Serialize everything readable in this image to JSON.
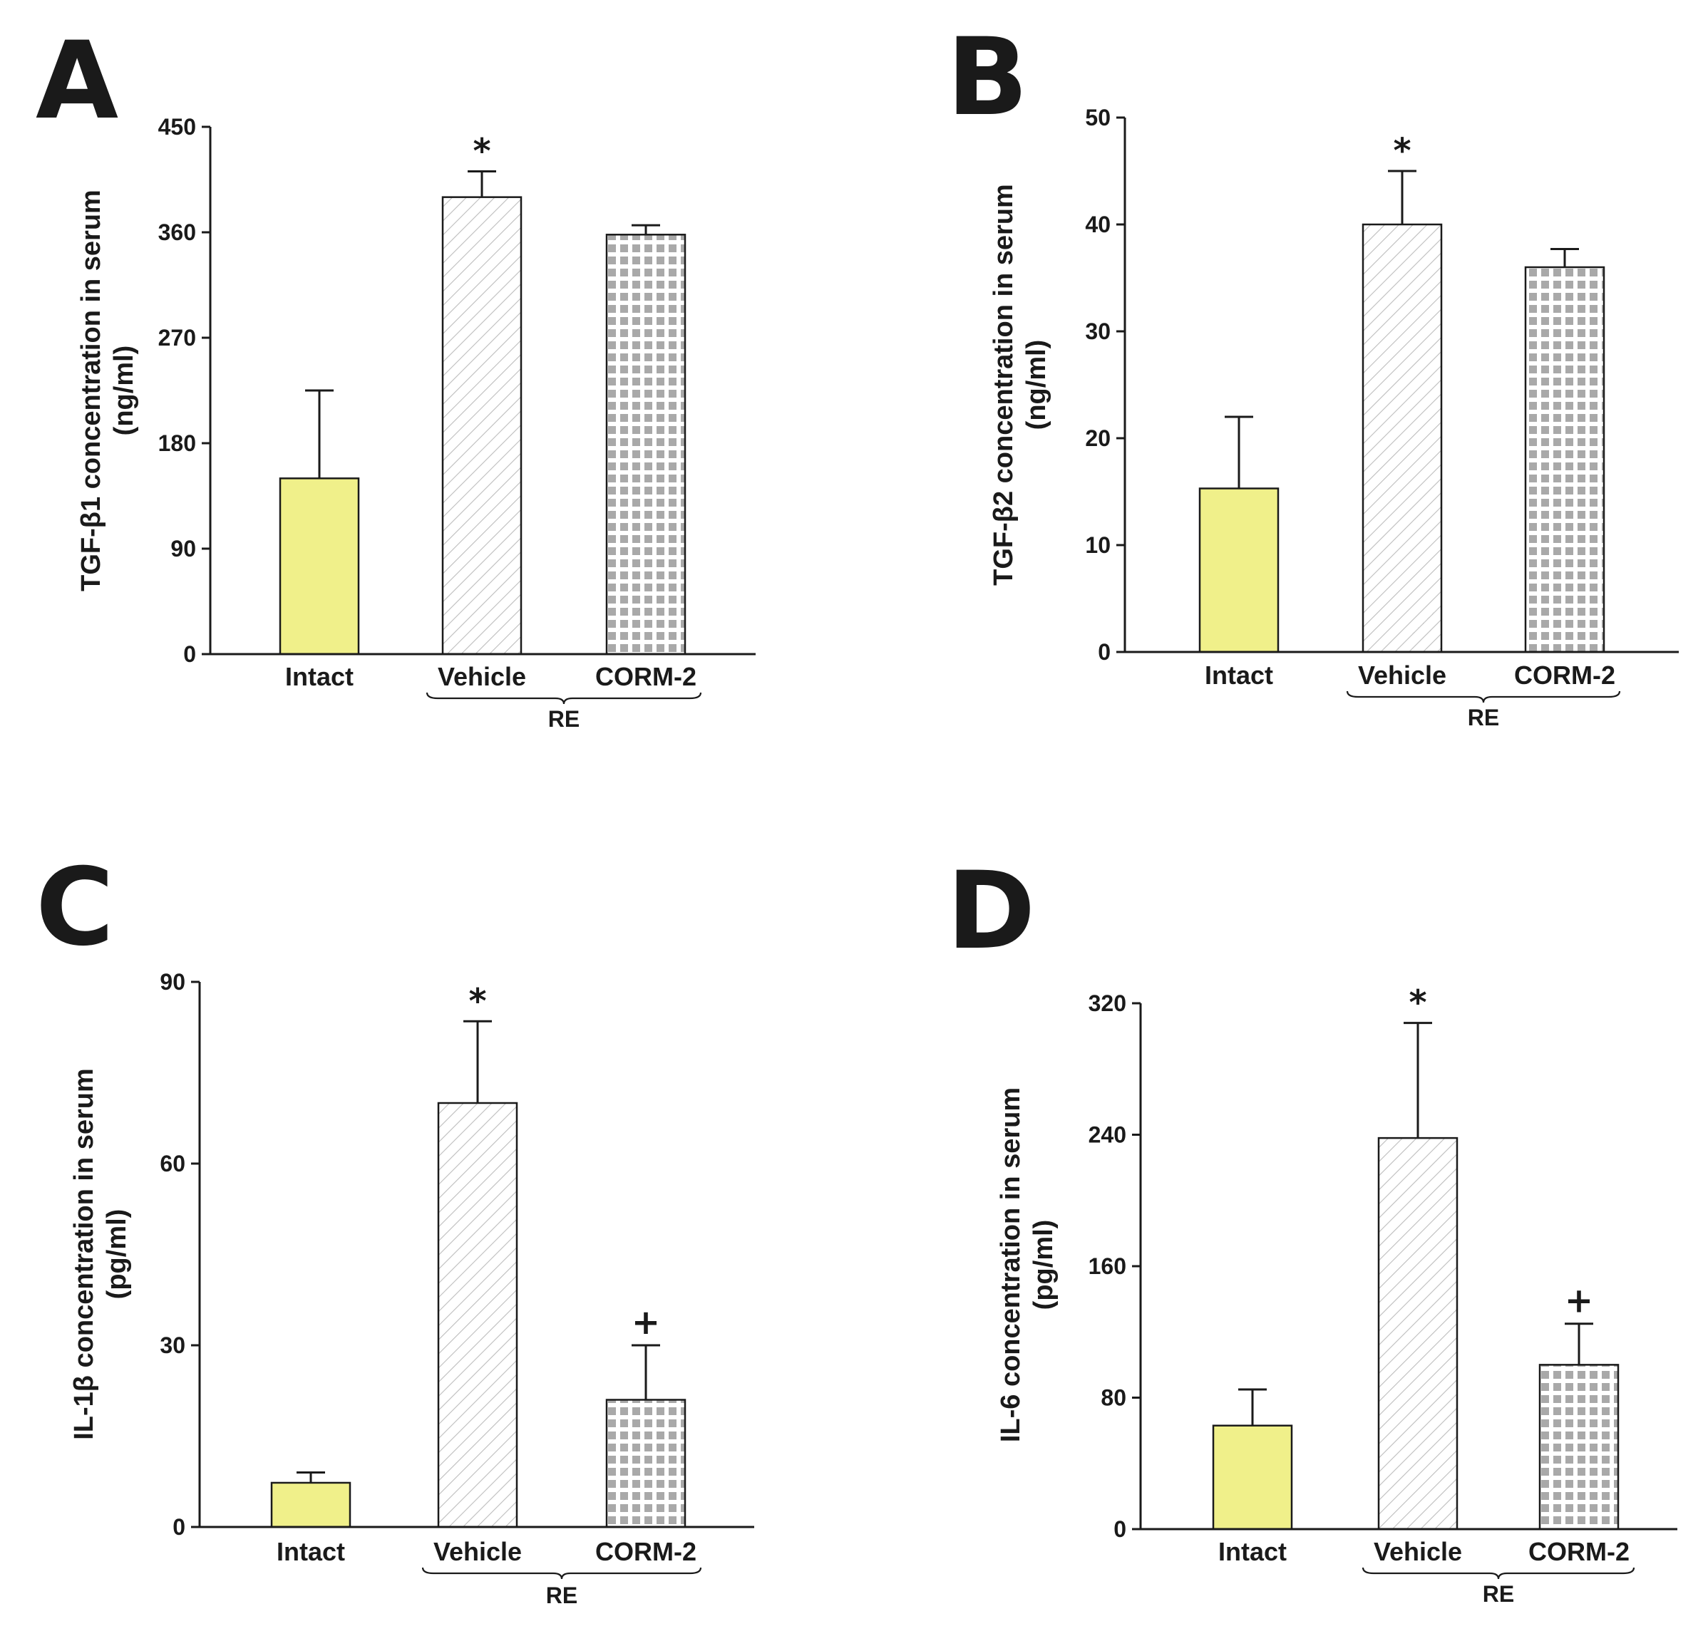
{
  "chart_data": [
    {
      "panel": "A",
      "type": "bar",
      "ylabel": "TGF-β1 concentration in serum",
      "yunit": "(ng/ml)",
      "ylim": [
        0,
        450
      ],
      "yticks": [
        "0",
        "90",
        "180",
        "270",
        "360",
        "450"
      ],
      "categories": [
        "Intact",
        "Vehicle",
        "CORM-2"
      ],
      "group_label": "RE",
      "values": [
        150,
        390,
        358
      ],
      "errors": [
        75,
        22,
        8
      ],
      "annotations": [
        "",
        "*",
        ""
      ]
    },
    {
      "panel": "B",
      "type": "bar",
      "ylabel": "TGF-β2 concentration in serum",
      "yunit": "(ng/ml)",
      "ylim": [
        0,
        50
      ],
      "yticks": [
        "0",
        "10",
        "20",
        "30",
        "40",
        "50"
      ],
      "categories": [
        "Intact",
        "Vehicle",
        "CORM-2"
      ],
      "group_label": "RE",
      "values": [
        15.3,
        40,
        36
      ],
      "errors": [
        6.7,
        5,
        1.7
      ],
      "annotations": [
        "",
        "*",
        ""
      ]
    },
    {
      "panel": "C",
      "type": "bar",
      "ylabel": "IL-1β concentration in serum",
      "yunit": "(pg/ml)",
      "ylim": [
        0,
        90
      ],
      "yticks": [
        "0",
        "30",
        "60",
        "90"
      ],
      "categories": [
        "Intact",
        "Vehicle",
        "CORM-2"
      ],
      "group_label": "RE",
      "values": [
        7.3,
        70,
        21
      ],
      "errors": [
        1.7,
        13.5,
        9
      ],
      "annotations": [
        "",
        "*",
        "+"
      ]
    },
    {
      "panel": "D",
      "type": "bar",
      "ylabel": "IL-6 concentration in serum",
      "yunit": "(pg/ml)",
      "ylim": [
        0,
        320
      ],
      "yticks": [
        "0",
        "80",
        "160",
        "240",
        "320"
      ],
      "categories": [
        "Intact",
        "Vehicle",
        "CORM-2"
      ],
      "group_label": "RE",
      "values": [
        63,
        238,
        100
      ],
      "errors": [
        22,
        70,
        25
      ],
      "annotations": [
        "",
        "*",
        "+"
      ]
    }
  ],
  "colors": {
    "intact_fill": "#f0f08a",
    "vehicle_fill": "#ffffff",
    "vehicle_hatch": "#bdbdbd",
    "corm_fill": "#ffffff",
    "corm_dot": "#a9a9a9",
    "axis": "#1a1a1a"
  }
}
